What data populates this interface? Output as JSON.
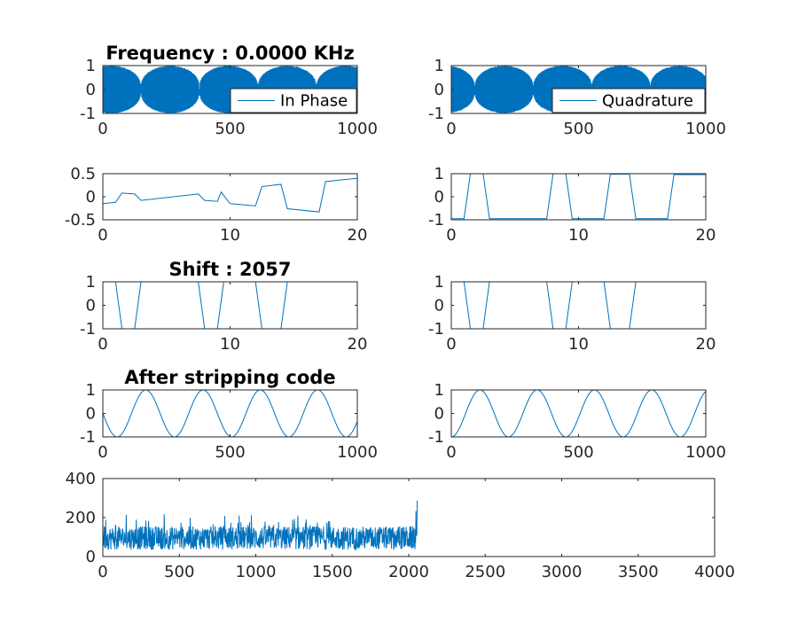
{
  "chart_data": [
    {
      "id": "in_phase_raw",
      "type": "line",
      "title": "Frequency : 0.0000 KHz",
      "xlim": [
        0,
        1000
      ],
      "ylim": [
        -1,
        1
      ],
      "xticks": [
        "0",
        "500",
        "1000"
      ],
      "yticks": [
        "1",
        "0",
        "-1"
      ],
      "legend": {
        "position": "bottom-right",
        "entries": [
          "In Phase"
        ]
      },
      "series": [
        {
          "name": "In Phase",
          "kind": "modulated_carrier",
          "envelope_period": 230,
          "envelope_phase": 0.35,
          "color": "#0072BD"
        }
      ]
    },
    {
      "id": "quadrature_raw",
      "type": "line",
      "title": "",
      "xlim": [
        0,
        1000
      ],
      "ylim": [
        -1,
        1
      ],
      "xticks": [
        "0",
        "500",
        "1000"
      ],
      "yticks": [
        "1",
        "0",
        "-1"
      ],
      "legend": {
        "position": "bottom-right",
        "entries": [
          "Quadrature"
        ]
      },
      "series": [
        {
          "name": "Quadrature",
          "kind": "modulated_carrier",
          "envelope_period": 230,
          "envelope_phase": 0.6,
          "color": "#0072BD"
        }
      ]
    },
    {
      "id": "in_phase_zoom",
      "type": "line",
      "title": "",
      "xlim": [
        0,
        20
      ],
      "ylim": [
        -0.5,
        0.5
      ],
      "xticks": [
        "0",
        "10",
        "20"
      ],
      "yticks": [
        "0.5",
        "0",
        "-0.5"
      ],
      "series": [
        {
          "color": "#0072BD",
          "x": [
            0,
            1,
            1.5,
            2.5,
            3,
            7.5,
            8,
            9,
            9.3,
            10,
            12,
            12.5,
            14,
            14.5,
            17,
            17.5,
            20
          ],
          "y": [
            -0.15,
            -0.12,
            0.08,
            0.06,
            -0.08,
            0.06,
            -0.08,
            -0.1,
            0.1,
            -0.15,
            -0.2,
            0.22,
            0.27,
            -0.26,
            -0.33,
            0.33,
            0.4
          ]
        }
      ]
    },
    {
      "id": "quadrature_zoom",
      "type": "line",
      "title": "",
      "xlim": [
        0,
        20
      ],
      "ylim": [
        -1,
        1
      ],
      "xticks": [
        "0",
        "10",
        "20"
      ],
      "yticks": [
        "1",
        "0",
        "-1"
      ],
      "series": [
        {
          "color": "#0072BD",
          "x": [
            0,
            1,
            1.5,
            2.5,
            3,
            7.5,
            8,
            9,
            9.5,
            12,
            12.5,
            14,
            14.5,
            17,
            17.5,
            20
          ],
          "y": [
            -0.95,
            -0.95,
            1,
            1,
            -0.95,
            -0.95,
            1,
            1,
            -0.95,
            -0.95,
            0.98,
            0.98,
            -0.95,
            -0.95,
            0.96,
            0.96
          ]
        }
      ]
    },
    {
      "id": "code_shifted_i",
      "type": "line",
      "title": "Shift : 2057",
      "xlim": [
        0,
        20
      ],
      "ylim": [
        -1,
        1
      ],
      "xticks": [
        "0",
        "10",
        "20"
      ],
      "yticks": [
        "1",
        "0",
        "-1"
      ],
      "series": [
        {
          "color": "#0072BD",
          "x": [
            0,
            1,
            1.5,
            2.5,
            3,
            7.5,
            8,
            9,
            9.5,
            12,
            12.5,
            14,
            14.5,
            17,
            17.5,
            20
          ],
          "y": [
            1,
            1,
            -1,
            -1,
            1,
            1,
            -1,
            -1,
            1,
            1,
            -1,
            -1,
            1,
            1,
            1,
            1
          ]
        }
      ]
    },
    {
      "id": "code_shifted_q",
      "type": "line",
      "title": "",
      "xlim": [
        0,
        20
      ],
      "ylim": [
        -1,
        1
      ],
      "xticks": [
        "0",
        "10",
        "20"
      ],
      "yticks": [
        "1",
        "0",
        "-1"
      ],
      "series": [
        {
          "color": "#0072BD",
          "x": [
            0,
            1,
            1.5,
            2.5,
            3,
            7.5,
            8,
            9,
            9.5,
            12,
            12.5,
            14,
            14.5,
            17,
            17.5,
            20
          ],
          "y": [
            1,
            1,
            -1,
            -1,
            1,
            1,
            -1,
            -1,
            1,
            1,
            -1,
            -1,
            1,
            1,
            1,
            1
          ]
        }
      ]
    },
    {
      "id": "stripped_i",
      "type": "line",
      "title": "After stripping code",
      "xlim": [
        0,
        1000
      ],
      "ylim": [
        -1,
        1
      ],
      "xticks": [
        "0",
        "500",
        "1000"
      ],
      "yticks": [
        "1",
        "0",
        "-1"
      ],
      "series": [
        {
          "color": "#0072BD",
          "kind": "sinusoid",
          "period": 225,
          "phase_deg": 180,
          "samples": 1000
        }
      ]
    },
    {
      "id": "stripped_q",
      "type": "line",
      "title": "",
      "xlim": [
        0,
        1000
      ],
      "ylim": [
        -1,
        1
      ],
      "xticks": [
        "0",
        "500",
        "1000"
      ],
      "yticks": [
        "1",
        "0",
        "-1"
      ],
      "series": [
        {
          "color": "#0072BD",
          "kind": "sinusoid",
          "period": 225,
          "phase_deg": -90,
          "samples": 1000
        }
      ]
    },
    {
      "id": "correlation",
      "type": "line",
      "title": "",
      "xlim": [
        0,
        4000
      ],
      "ylim": [
        0,
        400
      ],
      "xticks": [
        "0",
        "500",
        "1000",
        "1500",
        "2000",
        "2500",
        "3000",
        "3500",
        "4000"
      ],
      "yticks": [
        "400",
        "200",
        "0"
      ],
      "series": [
        {
          "color": "#0072BD",
          "kind": "noise",
          "n_points": 2057,
          "mean": 95,
          "spread": 60,
          "max": 285,
          "peak_at": 2057
        }
      ]
    }
  ]
}
